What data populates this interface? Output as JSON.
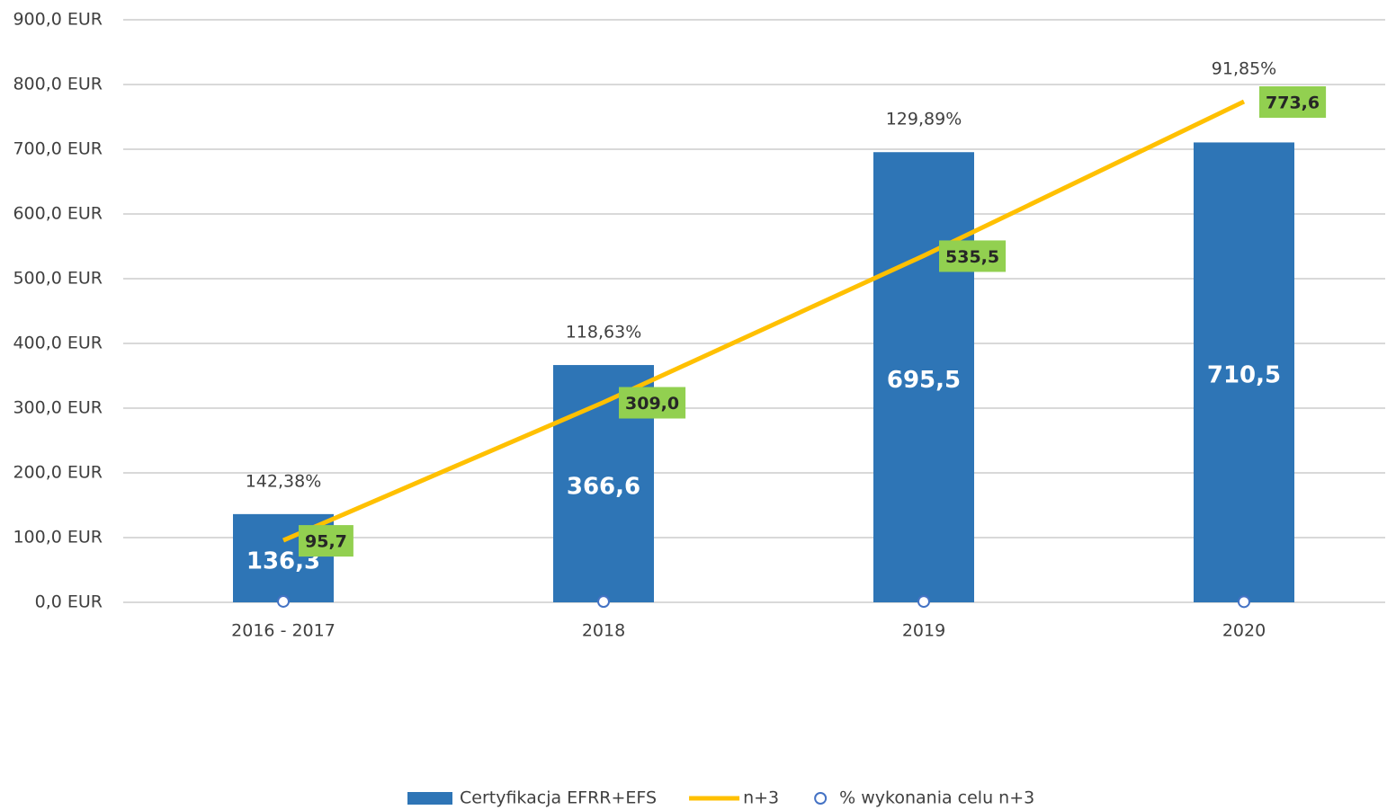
{
  "chart_data": {
    "type": "bar",
    "categories": [
      "2016 - 2017",
      "2018",
      "2019",
      "2020"
    ],
    "ylim": [
      0,
      900
    ],
    "yticks": [
      {
        "value": 0,
        "label": "0,0 EUR"
      },
      {
        "value": 100,
        "label": "100,0 EUR"
      },
      {
        "value": 200,
        "label": "200,0 EUR"
      },
      {
        "value": 300,
        "label": "300,0 EUR"
      },
      {
        "value": 400,
        "label": "400,0 EUR"
      },
      {
        "value": 500,
        "label": "500,0 EUR"
      },
      {
        "value": 600,
        "label": "600,0 EUR"
      },
      {
        "value": 700,
        "label": "700,0 EUR"
      },
      {
        "value": 800,
        "label": "800,0 EUR"
      },
      {
        "value": 900,
        "label": "900,0 EUR"
      }
    ],
    "grid": true,
    "legend": "bottom",
    "series": [
      {
        "name": "Certyfikacja EFRR+EFS",
        "type": "bar",
        "color": "#2e75b6",
        "values": [
          136.3,
          366.6,
          695.5,
          710.5
        ],
        "value_labels": [
          "136,3",
          "366,6",
          "695,5",
          "710,5"
        ]
      },
      {
        "name": "n+3",
        "type": "line",
        "color": "#ffc000",
        "label_color": "#92d050",
        "values": [
          95.7,
          309.0,
          535.5,
          773.6
        ],
        "value_labels": [
          "95,7",
          "309,0",
          "535,5",
          "773,6"
        ]
      },
      {
        "name": "% wykonania celu n+3",
        "type": "scatter",
        "color": "#4472c4",
        "values": [
          1.4238,
          1.1863,
          1.2989,
          0.9185
        ],
        "value_labels": [
          "142,38%",
          "118,63%",
          "129,89%",
          "91,85%"
        ]
      }
    ]
  }
}
